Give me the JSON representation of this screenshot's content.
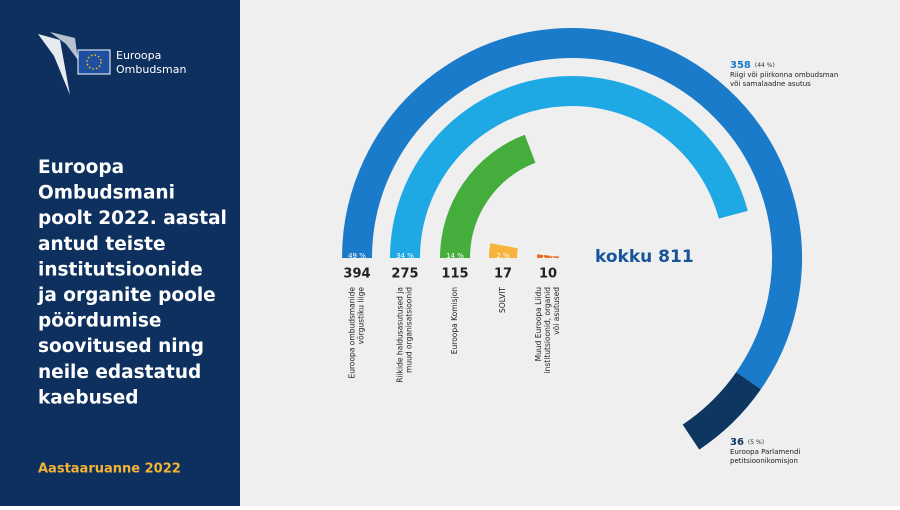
{
  "header": {
    "logo_lines": [
      "Euroopa",
      "Ombudsman"
    ],
    "title_lines": [
      "Euroopa",
      "Ombudsmani",
      "poolt 2022. aastal",
      "antud teiste",
      "institutsioonide",
      "ja organite poole",
      "pöördumise",
      "soovitused ning",
      "neile edastatud",
      "kaebused"
    ],
    "footer": "Aastaaruanne 2022"
  },
  "chart_data": {
    "type": "radial_bar",
    "categories": [
      [
        "Euroopa ombudsmanide",
        "võrgustiku liige"
      ],
      [
        "Riikide haldusasutused ja",
        "muud organisatsioonid"
      ],
      [
        "Euroopa Komisjon"
      ],
      [
        "SOLVIT"
      ],
      [
        "Muud Euroopa Liidu",
        "institutsioonid, organid",
        "või asutused"
      ]
    ],
    "values": [
      394,
      275,
      115,
      17,
      10
    ],
    "share_labels": [
      "49 %",
      "34 %",
      "14 %",
      "2 %",
      "1 %"
    ],
    "colors": [
      "#1b7bcb",
      "#1ea9e5",
      "#45ad3b",
      "#f8b33b",
      "#e56a1c"
    ],
    "breakdown": [
      {
        "value": 358,
        "share_label": "(44 %)",
        "label_lines": [
          "Riigi või piirkonna ombudsman",
          "või samalaadne asutus"
        ],
        "color": "#1b7bcb"
      },
      {
        "value": 36,
        "share_label": "(5 %)",
        "label_lines": [
          "Euroopa Parlamendi",
          "petitsioonikomisjon"
        ],
        "color": "#0d3760"
      }
    ],
    "total_label": "kokku 811"
  }
}
